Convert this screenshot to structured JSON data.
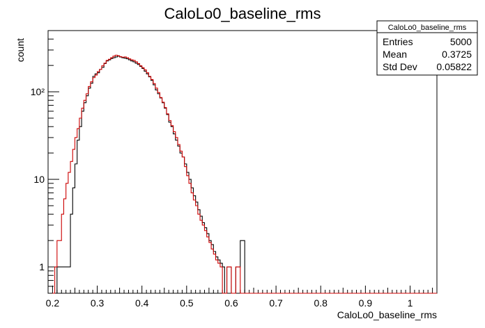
{
  "chart_data": {
    "type": "histogram",
    "title": "CaloLo0_baseline_rms",
    "xlabel": "CaloLo0_baseline_rms",
    "ylabel": "count",
    "xlim": [
      0.19,
      1.06
    ],
    "ylim": [
      0.5,
      500
    ],
    "yscale": "log",
    "x_ticks": [
      0.2,
      0.3,
      0.4,
      0.5,
      0.6,
      0.7,
      0.8,
      0.9,
      1.0
    ],
    "x_tick_labels": [
      "0.2",
      "0.3",
      "0.4",
      "0.5",
      "0.6",
      "0.7",
      "0.8",
      "0.9",
      "1"
    ],
    "y_ticks": [
      1,
      10,
      100
    ],
    "y_tick_labels": [
      "1",
      "10",
      "10²"
    ],
    "grid": false,
    "legend": "none",
    "series": [
      {
        "color": "#000000",
        "bins": [
          [
            0.19,
            0.195,
            0.5
          ],
          [
            0.195,
            0.2,
            0.5
          ],
          [
            0.2,
            0.205,
            0.5
          ],
          [
            0.205,
            0.21,
            0.5
          ],
          [
            0.21,
            0.22,
            1
          ],
          [
            0.22,
            0.24,
            1
          ],
          [
            0.24,
            0.245,
            4
          ],
          [
            0.245,
            0.25,
            8
          ],
          [
            0.25,
            0.255,
            15
          ],
          [
            0.255,
            0.26,
            28
          ],
          [
            0.26,
            0.265,
            40
          ],
          [
            0.265,
            0.27,
            60
          ],
          [
            0.27,
            0.275,
            75
          ],
          [
            0.275,
            0.28,
            90
          ],
          [
            0.28,
            0.285,
            110
          ],
          [
            0.285,
            0.29,
            125
          ],
          [
            0.29,
            0.295,
            150
          ],
          [
            0.295,
            0.3,
            160
          ],
          [
            0.3,
            0.305,
            165
          ],
          [
            0.305,
            0.31,
            180
          ],
          [
            0.31,
            0.315,
            190
          ],
          [
            0.315,
            0.32,
            210
          ],
          [
            0.32,
            0.325,
            225
          ],
          [
            0.325,
            0.33,
            232
          ],
          [
            0.33,
            0.335,
            240
          ],
          [
            0.335,
            0.34,
            245
          ],
          [
            0.34,
            0.345,
            250
          ],
          [
            0.345,
            0.35,
            255
          ],
          [
            0.35,
            0.355,
            250
          ],
          [
            0.355,
            0.36,
            245
          ],
          [
            0.36,
            0.365,
            242
          ],
          [
            0.365,
            0.37,
            238
          ],
          [
            0.37,
            0.375,
            232
          ],
          [
            0.375,
            0.38,
            225
          ],
          [
            0.38,
            0.385,
            220
          ],
          [
            0.385,
            0.39,
            212
          ],
          [
            0.39,
            0.395,
            205
          ],
          [
            0.395,
            0.4,
            195
          ],
          [
            0.4,
            0.405,
            185
          ],
          [
            0.405,
            0.41,
            172
          ],
          [
            0.41,
            0.415,
            160
          ],
          [
            0.415,
            0.42,
            148
          ],
          [
            0.42,
            0.425,
            135
          ],
          [
            0.425,
            0.43,
            120
          ],
          [
            0.43,
            0.435,
            105
          ],
          [
            0.435,
            0.44,
            95
          ],
          [
            0.44,
            0.445,
            85
          ],
          [
            0.445,
            0.45,
            75
          ],
          [
            0.45,
            0.455,
            65
          ],
          [
            0.455,
            0.46,
            55
          ],
          [
            0.46,
            0.465,
            45
          ],
          [
            0.465,
            0.47,
            40
          ],
          [
            0.47,
            0.475,
            33
          ],
          [
            0.475,
            0.48,
            28
          ],
          [
            0.48,
            0.485,
            24
          ],
          [
            0.485,
            0.49,
            20
          ],
          [
            0.49,
            0.495,
            18
          ],
          [
            0.495,
            0.5,
            15
          ],
          [
            0.5,
            0.505,
            12
          ],
          [
            0.505,
            0.51,
            10
          ],
          [
            0.51,
            0.515,
            8
          ],
          [
            0.515,
            0.52,
            6.5
          ],
          [
            0.52,
            0.525,
            5.5
          ],
          [
            0.525,
            0.53,
            4.5
          ],
          [
            0.53,
            0.535,
            3.8
          ],
          [
            0.535,
            0.54,
            3.2
          ],
          [
            0.54,
            0.545,
            2.8
          ],
          [
            0.545,
            0.55,
            2.4
          ],
          [
            0.55,
            0.555,
            2.0
          ],
          [
            0.555,
            0.56,
            1.8
          ],
          [
            0.56,
            0.565,
            1.5
          ],
          [
            0.565,
            0.57,
            1.3
          ],
          [
            0.57,
            0.575,
            1.2
          ],
          [
            0.575,
            0.58,
            1.1
          ],
          [
            0.58,
            0.585,
            1
          ],
          [
            0.585,
            0.59,
            0.5
          ],
          [
            0.59,
            0.6,
            1
          ],
          [
            0.6,
            0.61,
            0.5
          ],
          [
            0.61,
            0.62,
            1
          ],
          [
            0.62,
            0.63,
            2
          ],
          [
            0.63,
            1.06,
            0.5
          ]
        ]
      },
      {
        "color": "#cc0000",
        "bins": [
          [
            0.2,
            0.205,
            0.5
          ],
          [
            0.205,
            0.21,
            1
          ],
          [
            0.21,
            0.22,
            2
          ],
          [
            0.22,
            0.225,
            4
          ],
          [
            0.225,
            0.23,
            6
          ],
          [
            0.23,
            0.235,
            9
          ],
          [
            0.235,
            0.24,
            12
          ],
          [
            0.24,
            0.245,
            16
          ],
          [
            0.245,
            0.25,
            22
          ],
          [
            0.25,
            0.255,
            30
          ],
          [
            0.255,
            0.26,
            38
          ],
          [
            0.26,
            0.265,
            50
          ],
          [
            0.265,
            0.27,
            65
          ],
          [
            0.27,
            0.275,
            80
          ],
          [
            0.275,
            0.28,
            95
          ],
          [
            0.28,
            0.285,
            115
          ],
          [
            0.285,
            0.29,
            130
          ],
          [
            0.29,
            0.295,
            145
          ],
          [
            0.295,
            0.3,
            155
          ],
          [
            0.3,
            0.305,
            170
          ],
          [
            0.305,
            0.31,
            180
          ],
          [
            0.31,
            0.315,
            198
          ],
          [
            0.315,
            0.32,
            212
          ],
          [
            0.32,
            0.325,
            228
          ],
          [
            0.325,
            0.33,
            235
          ],
          [
            0.33,
            0.335,
            245
          ],
          [
            0.335,
            0.34,
            255
          ],
          [
            0.34,
            0.345,
            262
          ],
          [
            0.345,
            0.35,
            258
          ],
          [
            0.35,
            0.355,
            252
          ],
          [
            0.355,
            0.36,
            248
          ],
          [
            0.36,
            0.365,
            250
          ],
          [
            0.365,
            0.37,
            245
          ],
          [
            0.37,
            0.375,
            238
          ],
          [
            0.375,
            0.38,
            232
          ],
          [
            0.38,
            0.385,
            228
          ],
          [
            0.385,
            0.39,
            220
          ],
          [
            0.39,
            0.395,
            210
          ],
          [
            0.395,
            0.4,
            198
          ],
          [
            0.4,
            0.405,
            188
          ],
          [
            0.405,
            0.41,
            178
          ],
          [
            0.41,
            0.415,
            165
          ],
          [
            0.415,
            0.42,
            150
          ],
          [
            0.42,
            0.425,
            138
          ],
          [
            0.425,
            0.43,
            124
          ],
          [
            0.43,
            0.435,
            110
          ],
          [
            0.435,
            0.44,
            98
          ],
          [
            0.44,
            0.445,
            86
          ],
          [
            0.445,
            0.45,
            76
          ],
          [
            0.45,
            0.455,
            66
          ],
          [
            0.455,
            0.46,
            56
          ],
          [
            0.46,
            0.465,
            47
          ],
          [
            0.465,
            0.47,
            41
          ],
          [
            0.47,
            0.475,
            35
          ],
          [
            0.475,
            0.48,
            30
          ],
          [
            0.48,
            0.485,
            25
          ],
          [
            0.485,
            0.49,
            21
          ],
          [
            0.49,
            0.495,
            18
          ],
          [
            0.495,
            0.5,
            14
          ],
          [
            0.5,
            0.505,
            11
          ],
          [
            0.505,
            0.51,
            9
          ],
          [
            0.51,
            0.515,
            7
          ],
          [
            0.515,
            0.52,
            5.8
          ],
          [
            0.52,
            0.525,
            5
          ],
          [
            0.525,
            0.53,
            4
          ],
          [
            0.53,
            0.535,
            3.4
          ],
          [
            0.535,
            0.54,
            3
          ],
          [
            0.54,
            0.545,
            2.6
          ],
          [
            0.545,
            0.55,
            2.2
          ],
          [
            0.55,
            0.555,
            1.9
          ],
          [
            0.555,
            0.56,
            1.6
          ],
          [
            0.56,
            0.565,
            1.4
          ],
          [
            0.565,
            0.57,
            1.2
          ],
          [
            0.57,
            0.575,
            1.1
          ],
          [
            0.575,
            0.58,
            1
          ],
          [
            0.58,
            0.59,
            0.5
          ],
          [
            0.59,
            0.6,
            1
          ],
          [
            0.6,
            0.61,
            0.5
          ],
          [
            0.61,
            0.62,
            1
          ],
          [
            0.62,
            1.06,
            0.5
          ]
        ]
      }
    ]
  },
  "stats_box": {
    "title": "CaloLo0_baseline_rms",
    "rows": [
      {
        "label": "Entries",
        "value": "5000"
      },
      {
        "label": "Mean",
        "value": "0.3725"
      },
      {
        "label": "Std Dev",
        "value": "0.05822"
      }
    ]
  }
}
